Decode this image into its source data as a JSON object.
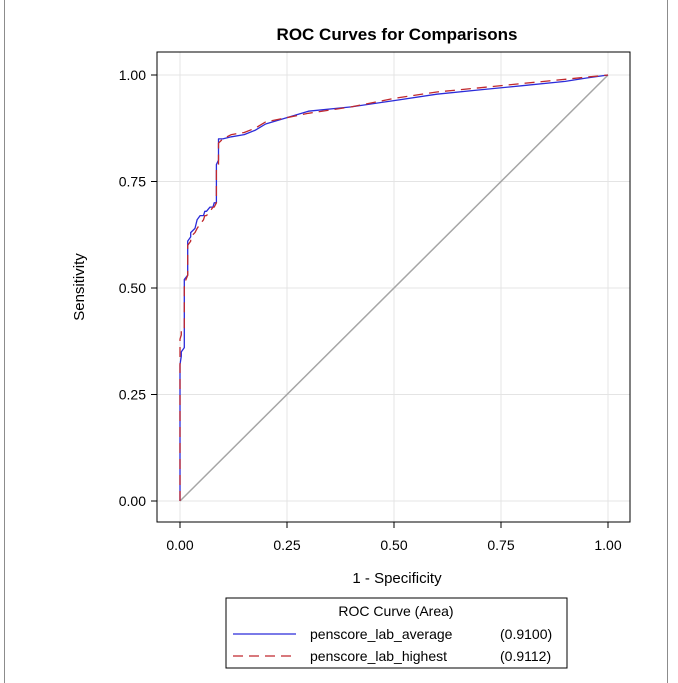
{
  "chart_data": {
    "type": "line",
    "title": "ROC Curves for Comparisons",
    "xlabel": "1 - Specificity",
    "ylabel": "Sensitivity",
    "xlim": [
      0,
      1
    ],
    "ylim": [
      0,
      1
    ],
    "xticks": [
      "0.00",
      "0.25",
      "0.50",
      "0.75",
      "1.00"
    ],
    "yticks": [
      "0.00",
      "0.25",
      "0.50",
      "0.75",
      "1.00"
    ],
    "grid": true,
    "legend": {
      "title": "ROC Curve (Area)",
      "position": "bottom"
    },
    "reference_line": {
      "x": [
        0,
        1
      ],
      "y": [
        0,
        1
      ],
      "color": "#a6a6a6"
    },
    "series": [
      {
        "name": "penscore_lab_average",
        "area_label": "(0.9100)",
        "color": "#2b2bd9",
        "style": "solid",
        "x": [
          0,
          0,
          0.003,
          0.003,
          0.01,
          0.01,
          0.018,
          0.018,
          0.025,
          0.025,
          0.035,
          0.04,
          0.047,
          0.055,
          0.058,
          0.062,
          0.07,
          0.077,
          0.08,
          0.085,
          0.085,
          0.09,
          0.09,
          0.1,
          0.12,
          0.15,
          0.175,
          0.2,
          0.25,
          0.3,
          0.4,
          0.5,
          0.6,
          0.7,
          0.8,
          0.9,
          0.95,
          1.0
        ],
        "y": [
          0,
          0.32,
          0.34,
          0.35,
          0.36,
          0.52,
          0.53,
          0.61,
          0.62,
          0.63,
          0.64,
          0.66,
          0.67,
          0.67,
          0.68,
          0.68,
          0.69,
          0.69,
          0.7,
          0.7,
          0.79,
          0.8,
          0.85,
          0.85,
          0.855,
          0.86,
          0.87,
          0.885,
          0.9,
          0.915,
          0.925,
          0.94,
          0.955,
          0.965,
          0.975,
          0.985,
          0.993,
          1.0
        ]
      },
      {
        "name": "penscore_lab_highest",
        "area_label": "(0.9112)",
        "color": "#c0282d",
        "style": "dashed",
        "x": [
          0,
          0,
          0.003,
          0.003,
          0.01,
          0.01,
          0.018,
          0.018,
          0.025,
          0.025,
          0.035,
          0.04,
          0.047,
          0.055,
          0.058,
          0.062,
          0.07,
          0.077,
          0.08,
          0.085,
          0.085,
          0.09,
          0.09,
          0.1,
          0.12,
          0.15,
          0.175,
          0.2,
          0.25,
          0.3,
          0.4,
          0.5,
          0.6,
          0.7,
          0.8,
          0.9,
          0.95,
          1.0
        ],
        "y": [
          0,
          0.38,
          0.39,
          0.4,
          0.4,
          0.51,
          0.53,
          0.6,
          0.61,
          0.62,
          0.63,
          0.64,
          0.65,
          0.66,
          0.67,
          0.67,
          0.68,
          0.69,
          0.69,
          0.7,
          0.78,
          0.79,
          0.84,
          0.85,
          0.86,
          0.865,
          0.875,
          0.89,
          0.9,
          0.91,
          0.925,
          0.945,
          0.96,
          0.97,
          0.98,
          0.99,
          0.995,
          1.0
        ]
      }
    ]
  }
}
